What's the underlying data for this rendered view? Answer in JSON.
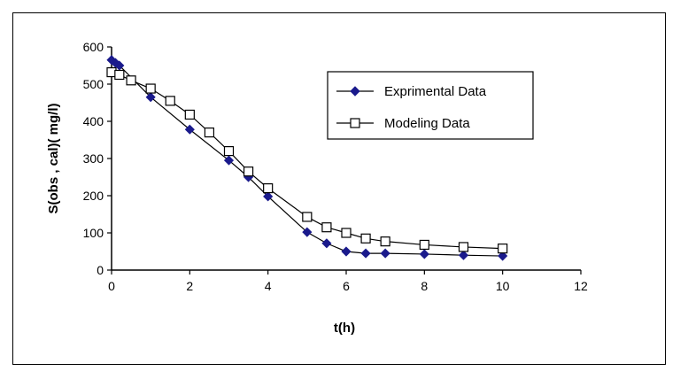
{
  "chart_data": {
    "type": "line",
    "title": "",
    "xlabel": "t(h)",
    "ylabel": "S(obs , cal)( mg/l)",
    "xlim": [
      0,
      12
    ],
    "ylim": [
      0,
      600
    ],
    "x_ticks": [
      0,
      2,
      4,
      6,
      8,
      10,
      12
    ],
    "y_ticks": [
      0,
      100,
      200,
      300,
      400,
      500,
      600
    ],
    "grid": false,
    "legend_position": "top-right",
    "series": [
      {
        "name": "Exprimental Data",
        "marker": "diamond-filled",
        "color": "#1a1a8c",
        "x": [
          0,
          0.1,
          0.2,
          1,
          2,
          3,
          3.5,
          4,
          5,
          5.5,
          6,
          6.5,
          7,
          8,
          9,
          10
        ],
        "y": [
          565,
          557,
          550,
          465,
          378,
          295,
          250,
          198,
          102,
          72,
          50,
          45,
          45,
          43,
          40,
          38
        ]
      },
      {
        "name": "Modeling Data",
        "marker": "square-open",
        "color": "#000000",
        "x": [
          0,
          0.2,
          0.5,
          1,
          1.5,
          2,
          2.5,
          3,
          3.5,
          4,
          5,
          5.5,
          6,
          6.5,
          7,
          8,
          9,
          10
        ],
        "y": [
          532,
          525,
          510,
          488,
          455,
          418,
          370,
          320,
          265,
          220,
          143,
          115,
          100,
          85,
          77,
          68,
          62,
          58
        ]
      }
    ]
  }
}
